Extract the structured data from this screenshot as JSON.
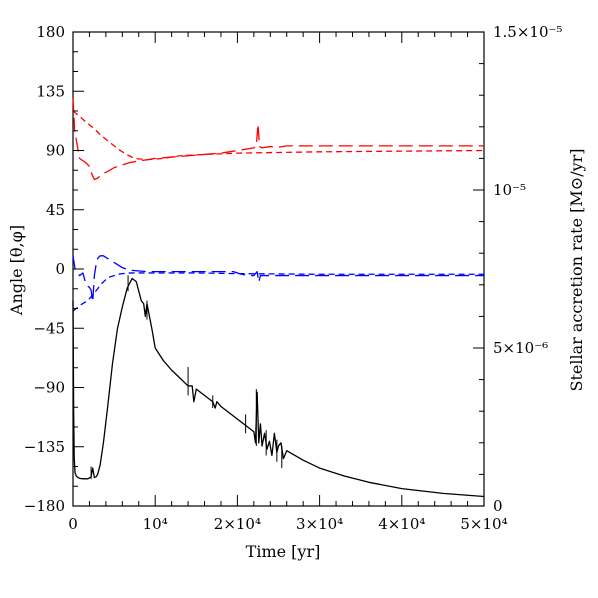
{
  "chart_data": {
    "type": "line",
    "xlabel": "Time [yr]",
    "ylabel_left": "Angle [θ,φ]",
    "ylabel_right": "Stellar accretion rate [M⊙/yr]",
    "xlim": [
      0,
      50000
    ],
    "ylim_left": [
      -180,
      180
    ],
    "ylim_right": [
      0,
      1.5e-05
    ],
    "x_ticks": [
      {
        "value": 0,
        "label": "0"
      },
      {
        "value": 10000,
        "label": "10⁴"
      },
      {
        "value": 20000,
        "label": "2×10⁴"
      },
      {
        "value": 30000,
        "label": "3×10⁴"
      },
      {
        "value": 40000,
        "label": "4×10⁴"
      },
      {
        "value": 50000,
        "label": "5×10⁴"
      }
    ],
    "y_ticks_left": [
      {
        "value": 180,
        "label": "180"
      },
      {
        "value": 135,
        "label": "135"
      },
      {
        "value": 90,
        "label": "90"
      },
      {
        "value": 45,
        "label": "45"
      },
      {
        "value": 0,
        "label": "0"
      },
      {
        "value": -45,
        "label": "−45"
      },
      {
        "value": -90,
        "label": "−90"
      },
      {
        "value": -135,
        "label": "−135"
      },
      {
        "value": -180,
        "label": "−180"
      }
    ],
    "y_ticks_right": [
      {
        "value": 1.5e-05,
        "label": "1.5×10⁻⁵"
      },
      {
        "value": 1e-05,
        "label": "10⁻⁵"
      },
      {
        "value": 5e-06,
        "label": "5×10⁻⁶"
      },
      {
        "value": 0,
        "label": "0"
      }
    ],
    "series": [
      {
        "axis": "left",
        "color": "#ff0000",
        "style": "short-dash",
        "x": [
          0,
          600,
          1500,
          2500,
          3500,
          4500,
          5500,
          6500,
          7500,
          9000,
          11000,
          13000,
          16000,
          20000,
          25000,
          30000,
          40000,
          50000
        ],
        "y": [
          120,
          117,
          112,
          107,
          101,
          96,
          91,
          87,
          84,
          83,
          84,
          86,
          87,
          88,
          88.5,
          89,
          89.5,
          90
        ]
      },
      {
        "axis": "left",
        "color": "#ff0000",
        "style": "long-dash",
        "x": [
          0,
          200,
          800,
          1500,
          2000,
          2300,
          2600,
          3000,
          3500,
          4200,
          5000,
          6000,
          7000,
          8000,
          9000,
          10000,
          12000,
          14000,
          16000,
          18000,
          20000,
          21000,
          22000,
          22300,
          22500,
          22700,
          23000,
          24000,
          25000,
          26000,
          30000,
          40000,
          50000
        ],
        "y": [
          130,
          105,
          84,
          81,
          78,
          72,
          68,
          69,
          72,
          74,
          77,
          79,
          81,
          82,
          83,
          84,
          85,
          86,
          87,
          88,
          90,
          91,
          92,
          93,
          110,
          93,
          92,
          93,
          92.5,
          93.5,
          93.5,
          93.5,
          93.5
        ]
      },
      {
        "axis": "left",
        "color": "#0000ff",
        "style": "short-dash",
        "x": [
          0,
          400,
          1000,
          1800,
          2500,
          3000,
          3500,
          4000,
          4500,
          5000,
          5500,
          6000,
          7000,
          8000,
          10000,
          15000,
          20000,
          30000,
          40000,
          50000
        ],
        "y": [
          -32,
          -30,
          -27,
          -24,
          -19,
          -15,
          -11,
          -8,
          -6,
          -5,
          -4,
          -3.5,
          -3,
          -3,
          -3,
          -3,
          -3.5,
          -4,
          -4,
          -4
        ]
      },
      {
        "axis": "left",
        "color": "#0000ff",
        "style": "long-dash",
        "x": [
          0,
          100,
          250,
          500,
          800,
          1200,
          1600,
          2000,
          2200,
          2400,
          2600,
          2800,
          3000,
          3300,
          3700,
          4200,
          5000,
          6000,
          7000,
          9000,
          12000,
          15000,
          18000,
          19500,
          20500,
          21500,
          22000,
          22400,
          22600,
          22800,
          23000,
          24000,
          26000,
          30000,
          40000,
          50000
        ],
        "y": [
          10,
          6,
          0,
          -3,
          -5,
          -3,
          -12,
          -14,
          -16,
          -25,
          -5,
          3,
          8,
          10,
          10,
          8,
          5,
          1,
          -1,
          -2,
          -2,
          -2,
          -2,
          -2,
          -4,
          -5,
          -5,
          -2,
          -10,
          -5,
          -5,
          -5,
          -5,
          -5,
          -5,
          -5
        ]
      },
      {
        "axis": "right",
        "color": "#000000",
        "style": "solid",
        "x": [
          0,
          80,
          150,
          250,
          400,
          600,
          900,
          1300,
          1800,
          2200,
          2400,
          2600,
          2800,
          3000,
          3300,
          3700,
          4200,
          4800,
          5400,
          6000,
          6600,
          7200,
          7700,
          8000,
          8300,
          8600,
          8800,
          9000,
          9300,
          9600,
          9800,
          10000,
          11000,
          12000,
          13000,
          14000,
          14500,
          14700,
          15000,
          16000,
          17000,
          17300,
          17500,
          18000,
          19000,
          20000,
          21000,
          22000,
          22200,
          22400,
          22600,
          22800,
          23000,
          23300,
          23600,
          23900,
          24200,
          24500,
          24800,
          25000,
          25300,
          25600,
          26000,
          28000,
          30000,
          33000,
          36000,
          40000,
          45000,
          50000
        ],
        "y": [
          6.5e-06,
          3e-06,
          1.5e-06,
          1.05e-06,
          9.5e-07,
          9e-07,
          8.7e-07,
          8.6e-07,
          8.6e-07,
          9.2e-07,
          1.2e-06,
          9e-07,
          9.2e-07,
          1e-06,
          1.3e-06,
          2e-06,
          3.1e-06,
          4.5e-06,
          5.6e-06,
          6.3e-06,
          6.9e-06,
          7.2e-06,
          7.1e-06,
          6.8e-06,
          6.5e-06,
          6.4e-06,
          6e-06,
          6.4e-06,
          6e-06,
          5.6e-06,
          5.3e-06,
          5e-06,
          4.6e-06,
          4.3e-06,
          4.05e-06,
          3.8e-06,
          3.8e-06,
          3.3e-06,
          3.7e-06,
          3.5e-06,
          3.3e-06,
          3.1e-06,
          3.3e-06,
          3.15e-06,
          2.95e-06,
          2.75e-06,
          2.55e-06,
          2.35e-06,
          2e-06,
          3.6e-06,
          2e-06,
          2.6e-06,
          1.9e-06,
          2.3e-06,
          1.8e-06,
          2.05e-06,
          1.6e-06,
          2.3e-06,
          1.7e-06,
          1.9e-06,
          2e-06,
          1.5e-06,
          1.75e-06,
          1.45e-06,
          1.2e-06,
          9.5e-07,
          7.5e-07,
          5.5e-07,
          4e-07,
          3e-07
        ]
      }
    ],
    "spikes": [
      {
        "x": 2200,
        "y1": 8.5e-07,
        "y2": 1.25e-06
      },
      {
        "x": 6700,
        "y1": 6.8e-06,
        "y2": 7.3e-06
      },
      {
        "x": 9000,
        "y1": 5.9e-06,
        "y2": 6.5e-06
      },
      {
        "x": 14000,
        "y1": 3.5e-06,
        "y2": 4.4e-06
      },
      {
        "x": 17000,
        "y1": 3.1e-06,
        "y2": 3.5e-06
      },
      {
        "x": 21000,
        "y1": 2.3e-06,
        "y2": 2.9e-06
      },
      {
        "x": 22300,
        "y1": 1.9e-06,
        "y2": 3.7e-06
      },
      {
        "x": 23500,
        "y1": 1.6e-06,
        "y2": 2.4e-06
      },
      {
        "x": 24800,
        "y1": 1.4e-06,
        "y2": 2.1e-06
      },
      {
        "x": 25400,
        "y1": 1.2e-06,
        "y2": 1.9e-06
      }
    ]
  }
}
